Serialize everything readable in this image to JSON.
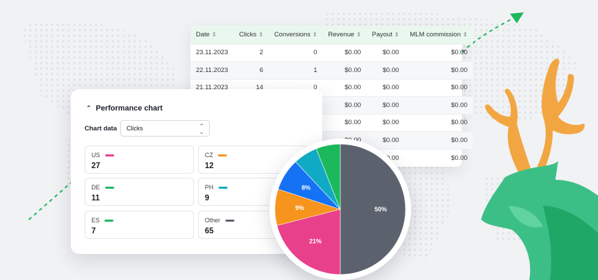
{
  "table": {
    "headers": [
      "Date",
      "Clicks",
      "Conversions",
      "Revenue",
      "Payout",
      "MLM commission"
    ],
    "rows": [
      [
        "23.11.2023",
        "2",
        "0",
        "$0.00",
        "$0.00",
        "$0.00"
      ],
      [
        "22.11.2023",
        "6",
        "1",
        "$0.00",
        "$0.00",
        "$0.00"
      ],
      [
        "21.11.2023",
        "14",
        "0",
        "$0.00",
        "$0.00",
        "$0.00"
      ],
      [
        "",
        "",
        "",
        "$0.00",
        "$0.00",
        "$0.00"
      ],
      [
        "",
        "",
        "",
        "$0.00",
        "$0.00",
        "$0.00"
      ],
      [
        "",
        "",
        "",
        "$0.00",
        "$0.00",
        "$0.00"
      ],
      [
        "",
        "",
        "",
        "",
        "$0.00",
        "$0.00"
      ]
    ]
  },
  "performance": {
    "title": "Performance chart",
    "chart_data_label": "Chart data",
    "select_value": "Clicks",
    "stats": [
      {
        "code": "US",
        "value": "27",
        "color": "#e8408a"
      },
      {
        "code": "CZ",
        "value": "12",
        "color": "#f7941d"
      },
      {
        "code": "DE",
        "value": "11",
        "color": "#1cb85c"
      },
      {
        "code": "PH",
        "value": "9",
        "color": "#11aac4"
      },
      {
        "code": "ES",
        "value": "7",
        "color": "#1cb85c"
      },
      {
        "code": "Other",
        "value": "65",
        "color": "#5c626d"
      }
    ]
  },
  "chart_data": {
    "type": "pie",
    "slices": [
      {
        "label": "50%",
        "value": 50,
        "color": "#5c626d"
      },
      {
        "label": "21%",
        "value": 21,
        "color": "#e8408a"
      },
      {
        "label": "9%",
        "value": 9,
        "color": "#f7941d"
      },
      {
        "label": "8%",
        "value": 8,
        "color": "#1672f4"
      },
      {
        "label": "",
        "value": 6,
        "color": "#11aac4"
      },
      {
        "label": "",
        "value": 6,
        "color": "#1cb85c"
      }
    ]
  },
  "colors": {
    "accent": "#1cb85c",
    "deer": "#f2a642",
    "deer_green": "#2fb679"
  },
  "icons": [
    "sort-icon",
    "chevron-up-icon",
    "select-arrows-icon",
    "trend-arrow-icon",
    "deer-logo"
  ]
}
